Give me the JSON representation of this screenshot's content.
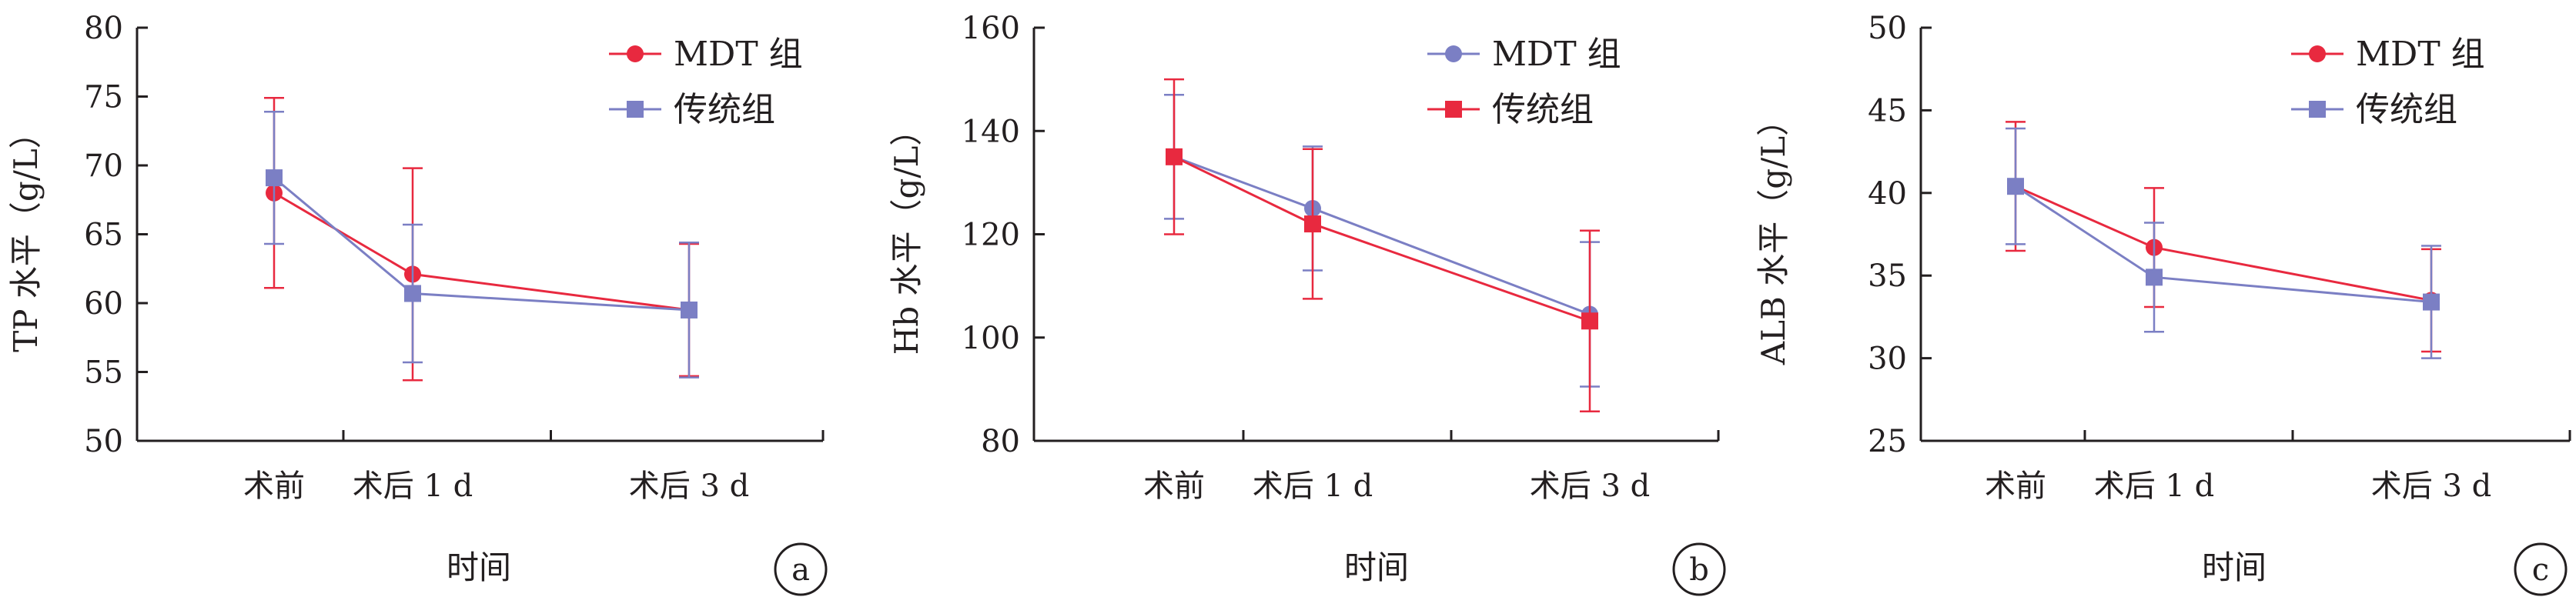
{
  "colors": {
    "red": "#e8293f",
    "blue": "#7b7fc4",
    "axis": "#231f20"
  },
  "chart_data": [
    {
      "type": "line",
      "panel_label": "a",
      "ylabel": "TP 水平（g/L）",
      "xlabel": "时间",
      "categories": [
        "术前",
        "术后 1 d",
        "术后 3 d"
      ],
      "ylim": [
        50,
        80
      ],
      "yticks": [
        50,
        55,
        60,
        65,
        70,
        75,
        80
      ],
      "legend_position": "top-right",
      "series": [
        {
          "name": "MDT 组",
          "marker": "circle",
          "color": "#e8293f",
          "values": [
            68.0,
            62.1,
            59.5
          ],
          "errors": [
            6.9,
            7.7,
            4.8
          ]
        },
        {
          "name": "传统组",
          "marker": "square",
          "color": "#7b7fc4",
          "values": [
            69.1,
            60.7,
            59.5
          ],
          "errors": [
            4.8,
            5.0,
            4.9
          ]
        }
      ]
    },
    {
      "type": "line",
      "panel_label": "b",
      "ylabel": "Hb 水平（g/L）",
      "xlabel": "时间",
      "categories": [
        "术前",
        "术后 1 d",
        "术后 3 d"
      ],
      "ylim": [
        80,
        160
      ],
      "yticks": [
        80,
        100,
        120,
        140,
        160
      ],
      "legend_position": "top-right",
      "series": [
        {
          "name": "MDT 组",
          "marker": "circle",
          "color": "#7b7fc4",
          "values": [
            135,
            125,
            104.5
          ],
          "errors": [
            12,
            12,
            14
          ]
        },
        {
          "name": "传统组",
          "marker": "square",
          "color": "#e8293f",
          "values": [
            135,
            122,
            103.2
          ],
          "errors": [
            15,
            14.5,
            17.5
          ]
        }
      ]
    },
    {
      "type": "line",
      "panel_label": "c",
      "ylabel": "ALB 水平（g/L）",
      "xlabel": "时间",
      "categories": [
        "术前",
        "术后 1 d",
        "术后 3 d"
      ],
      "ylim": [
        25,
        50
      ],
      "yticks": [
        25,
        30,
        35,
        40,
        45,
        50
      ],
      "legend_position": "top-right",
      "series": [
        {
          "name": "MDT 组",
          "marker": "circle",
          "color": "#e8293f",
          "values": [
            40.4,
            36.7,
            33.5
          ],
          "errors": [
            3.9,
            3.6,
            3.1
          ]
        },
        {
          "name": "传统组",
          "marker": "square",
          "color": "#7b7fc4",
          "values": [
            40.4,
            34.9,
            33.4
          ],
          "errors": [
            3.5,
            3.3,
            3.4
          ]
        }
      ]
    }
  ]
}
